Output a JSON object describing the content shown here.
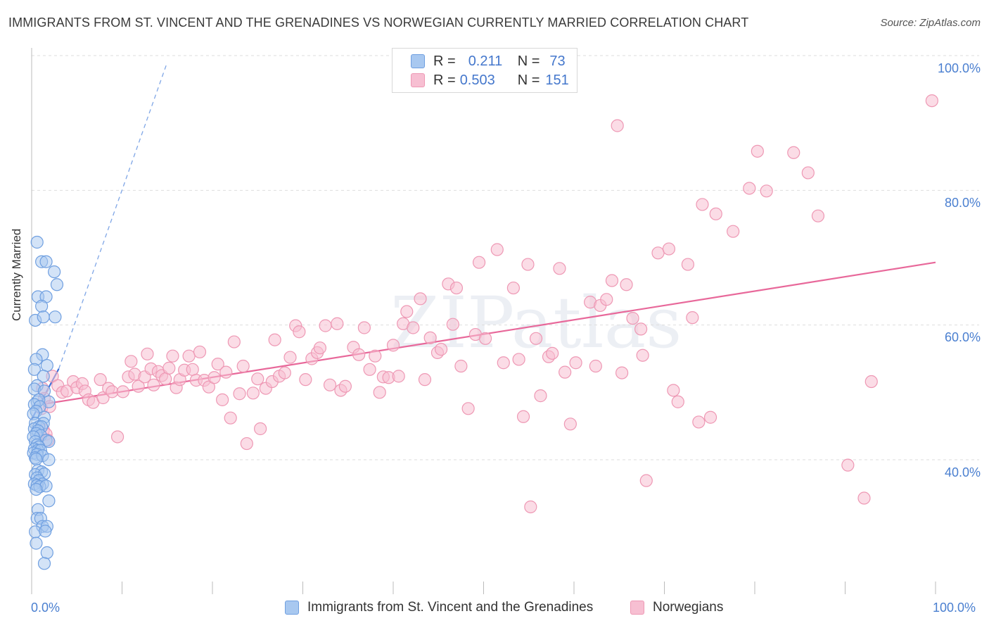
{
  "header": {
    "title": "IMMIGRANTS FROM ST. VINCENT AND THE GRENADINES VS NORWEGIAN CURRENTLY MARRIED CORRELATION CHART",
    "source": "Source: ZipAtlas.com"
  },
  "watermark": "ZIPatlas",
  "legend_top": {
    "rows": [
      {
        "r_label": "R =",
        "r_value": "0.211",
        "n_label": "N =",
        "n_value": "73"
      },
      {
        "r_label": "R =",
        "r_value": "0.503",
        "n_label": "N =",
        "n_value": "151"
      }
    ]
  },
  "colors": {
    "blue_fill": "#a8c8f0",
    "blue_stroke": "#6f9fe0",
    "blue_line": "#3f6fd8",
    "pink_fill": "#f7bfd2",
    "pink_stroke": "#ee98b4",
    "pink_line": "#e8689a",
    "grid": "#dddddd",
    "tick_text": "#4a7fd0"
  },
  "chart_data": {
    "type": "scatter",
    "title": "IMMIGRANTS FROM ST. VINCENT AND THE GRENADINES VS NORWEGIAN CURRENTLY MARRIED CORRELATION CHART",
    "xlabel": "",
    "ylabel": "Currently Married",
    "xlim": [
      0,
      100
    ],
    "ylim": [
      20,
      102
    ],
    "x_ticks": [
      "0.0%",
      "100.0%"
    ],
    "y_ticks": [
      "40.0%",
      "60.0%",
      "80.0%",
      "100.0%"
    ],
    "y_tick_values": [
      40,
      60,
      80,
      100
    ],
    "grid": true,
    "legend": "bottom",
    "series": [
      {
        "name": "Immigrants from St. Vincent and the Grenadines",
        "color": "blue",
        "R": 0.211,
        "N": 73,
        "trend_solid": [
          [
            0.0,
            46.0
          ],
          [
            3.0,
            53.5
          ]
        ],
        "trend_dashed": [
          [
            3.0,
            53.5
          ],
          [
            15.0,
            99.0
          ]
        ],
        "points": [
          [
            0.6,
            72.3
          ],
          [
            1.1,
            69.4
          ],
          [
            1.6,
            69.4
          ],
          [
            2.5,
            67.9
          ],
          [
            2.8,
            66.0
          ],
          [
            0.7,
            64.2
          ],
          [
            1.6,
            64.2
          ],
          [
            1.1,
            62.8
          ],
          [
            0.4,
            60.7
          ],
          [
            1.3,
            61.2
          ],
          [
            2.6,
            61.2
          ],
          [
            1.2,
            55.6
          ],
          [
            0.5,
            54.9
          ],
          [
            1.7,
            54.0
          ],
          [
            0.3,
            53.4
          ],
          [
            1.3,
            52.4
          ],
          [
            0.6,
            51.0
          ],
          [
            0.3,
            50.5
          ],
          [
            1.4,
            50.2
          ],
          [
            1.9,
            48.6
          ],
          [
            0.6,
            48.6
          ],
          [
            0.8,
            48.9
          ],
          [
            0.3,
            48.2
          ],
          [
            0.9,
            47.9
          ],
          [
            0.5,
            47.2
          ],
          [
            0.2,
            46.8
          ],
          [
            1.4,
            46.3
          ],
          [
            0.4,
            45.4
          ],
          [
            1.3,
            45.4
          ],
          [
            0.8,
            44.9
          ],
          [
            0.3,
            44.6
          ],
          [
            1.1,
            44.9
          ],
          [
            0.7,
            44.3
          ],
          [
            0.5,
            43.9
          ],
          [
            1.0,
            43.6
          ],
          [
            0.2,
            43.4
          ],
          [
            1.6,
            42.9
          ],
          [
            0.4,
            42.7
          ],
          [
            1.9,
            42.7
          ],
          [
            0.6,
            42.2
          ],
          [
            0.8,
            41.9
          ],
          [
            0.3,
            41.6
          ],
          [
            0.7,
            41.4
          ],
          [
            1.0,
            41.4
          ],
          [
            0.2,
            41.0
          ],
          [
            0.6,
            40.8
          ],
          [
            0.4,
            40.3
          ],
          [
            1.2,
            40.6
          ],
          [
            0.5,
            40.1
          ],
          [
            1.9,
            40.0
          ],
          [
            0.7,
            38.4
          ],
          [
            1.1,
            38.2
          ],
          [
            0.4,
            37.8
          ],
          [
            1.4,
            37.9
          ],
          [
            0.6,
            37.3
          ],
          [
            0.8,
            36.9
          ],
          [
            1.2,
            36.4
          ],
          [
            0.3,
            36.4
          ],
          [
            0.6,
            36.2
          ],
          [
            0.9,
            36.0
          ],
          [
            1.6,
            36.1
          ],
          [
            0.5,
            35.6
          ],
          [
            1.9,
            33.9
          ],
          [
            0.7,
            32.6
          ],
          [
            0.6,
            31.3
          ],
          [
            1.0,
            31.3
          ],
          [
            1.2,
            30.1
          ],
          [
            1.7,
            30.1
          ],
          [
            0.4,
            29.3
          ],
          [
            1.5,
            29.4
          ],
          [
            0.5,
            27.6
          ],
          [
            1.7,
            26.2
          ],
          [
            1.4,
            24.6
          ]
        ]
      },
      {
        "name": "Norwegians",
        "color": "pink",
        "R": 0.503,
        "N": 151,
        "trend_solid": [
          [
            1.5,
            48.3
          ],
          [
            100.0,
            69.3
          ]
        ],
        "points": [
          [
            1.2,
            50.6
          ],
          [
            1.4,
            49.1
          ],
          [
            1.1,
            47.6
          ],
          [
            1.3,
            44.4
          ],
          [
            1.6,
            43.8
          ],
          [
            1.8,
            42.9
          ],
          [
            2.0,
            47.9
          ],
          [
            2.3,
            52.4
          ],
          [
            2.9,
            51.0
          ],
          [
            3.4,
            50.0
          ],
          [
            3.9,
            50.2
          ],
          [
            4.6,
            51.6
          ],
          [
            5.0,
            50.7
          ],
          [
            5.6,
            51.3
          ],
          [
            5.9,
            50.2
          ],
          [
            6.3,
            48.9
          ],
          [
            6.8,
            48.5
          ],
          [
            7.6,
            51.9
          ],
          [
            7.9,
            49.2
          ],
          [
            8.5,
            50.6
          ],
          [
            8.9,
            50.1
          ],
          [
            9.5,
            43.4
          ],
          [
            10.1,
            50.1
          ],
          [
            10.7,
            52.3
          ],
          [
            11.0,
            54.6
          ],
          [
            11.4,
            52.7
          ],
          [
            11.8,
            50.9
          ],
          [
            12.5,
            52.3
          ],
          [
            12.8,
            55.7
          ],
          [
            13.2,
            53.5
          ],
          [
            13.5,
            51.1
          ],
          [
            14.0,
            53.1
          ],
          [
            14.4,
            52.5
          ],
          [
            14.8,
            52.0
          ],
          [
            15.2,
            53.6
          ],
          [
            15.6,
            55.4
          ],
          [
            16.0,
            50.7
          ],
          [
            16.4,
            51.9
          ],
          [
            16.9,
            53.3
          ],
          [
            17.4,
            55.4
          ],
          [
            17.8,
            53.4
          ],
          [
            18.2,
            51.8
          ],
          [
            18.6,
            56.0
          ],
          [
            19.1,
            51.8
          ],
          [
            19.6,
            50.8
          ],
          [
            20.2,
            52.2
          ],
          [
            20.6,
            54.2
          ],
          [
            21.1,
            48.9
          ],
          [
            21.5,
            53.0
          ],
          [
            22.0,
            46.2
          ],
          [
            22.4,
            57.5
          ],
          [
            23.0,
            49.8
          ],
          [
            23.4,
            53.9
          ],
          [
            23.8,
            42.4
          ],
          [
            24.5,
            49.9
          ],
          [
            25.0,
            52.0
          ],
          [
            25.3,
            44.6
          ],
          [
            25.9,
            50.6
          ],
          [
            26.6,
            51.6
          ],
          [
            26.9,
            57.8
          ],
          [
            27.4,
            52.4
          ],
          [
            28.0,
            52.9
          ],
          [
            28.6,
            55.2
          ],
          [
            29.2,
            59.9
          ],
          [
            29.6,
            59.0
          ],
          [
            30.3,
            51.9
          ],
          [
            31.0,
            55.0
          ],
          [
            31.6,
            55.9
          ],
          [
            31.9,
            56.6
          ],
          [
            32.5,
            59.9
          ],
          [
            33.0,
            51.1
          ],
          [
            33.8,
            60.2
          ],
          [
            34.2,
            50.3
          ],
          [
            34.7,
            50.9
          ],
          [
            35.6,
            56.7
          ],
          [
            36.2,
            55.6
          ],
          [
            36.8,
            59.6
          ],
          [
            37.4,
            53.4
          ],
          [
            38.0,
            55.4
          ],
          [
            38.5,
            50.0
          ],
          [
            38.9,
            52.3
          ],
          [
            39.5,
            52.2
          ],
          [
            40.0,
            57.0
          ],
          [
            40.6,
            52.4
          ],
          [
            41.1,
            60.2
          ],
          [
            41.5,
            62.0
          ],
          [
            42.2,
            59.6
          ],
          [
            43.0,
            63.9
          ],
          [
            43.5,
            51.9
          ],
          [
            44.1,
            58.1
          ],
          [
            44.9,
            55.9
          ],
          [
            45.3,
            56.4
          ],
          [
            46.6,
            60.1
          ],
          [
            46.1,
            66.1
          ],
          [
            47.0,
            65.5
          ],
          [
            47.5,
            53.9
          ],
          [
            48.3,
            47.6
          ],
          [
            49.1,
            58.6
          ],
          [
            49.5,
            69.3
          ],
          [
            50.2,
            58.0
          ],
          [
            51.5,
            71.2
          ],
          [
            52.2,
            54.4
          ],
          [
            53.3,
            65.5
          ],
          [
            53.9,
            54.9
          ],
          [
            54.4,
            46.4
          ],
          [
            54.9,
            69.0
          ],
          [
            55.2,
            33.0
          ],
          [
            55.8,
            58.0
          ],
          [
            56.3,
            49.5
          ],
          [
            57.2,
            55.3
          ],
          [
            57.6,
            55.8
          ],
          [
            58.4,
            68.4
          ],
          [
            59.0,
            53.0
          ],
          [
            59.6,
            45.3
          ],
          [
            60.2,
            54.4
          ],
          [
            61.8,
            63.4
          ],
          [
            62.4,
            53.9
          ],
          [
            62.9,
            62.9
          ],
          [
            63.6,
            63.8
          ],
          [
            64.2,
            66.6
          ],
          [
            64.8,
            89.6
          ],
          [
            65.3,
            52.9
          ],
          [
            65.8,
            66.0
          ],
          [
            66.5,
            61.0
          ],
          [
            67.4,
            59.4
          ],
          [
            67.6,
            55.5
          ],
          [
            68.0,
            36.9
          ],
          [
            69.3,
            70.7
          ],
          [
            70.5,
            71.3
          ],
          [
            71.0,
            50.3
          ],
          [
            71.5,
            48.6
          ],
          [
            72.6,
            69.0
          ],
          [
            73.1,
            61.1
          ],
          [
            73.8,
            45.6
          ],
          [
            74.2,
            77.9
          ],
          [
            75.1,
            46.3
          ],
          [
            75.7,
            76.5
          ],
          [
            77.6,
            73.9
          ],
          [
            79.4,
            80.3
          ],
          [
            80.3,
            85.8
          ],
          [
            81.3,
            79.9
          ],
          [
            84.3,
            85.6
          ],
          [
            85.9,
            82.6
          ],
          [
            87.0,
            76.2
          ],
          [
            90.3,
            39.2
          ],
          [
            92.1,
            34.3
          ],
          [
            92.9,
            51.6
          ],
          [
            99.6,
            93.3
          ]
        ]
      }
    ]
  },
  "legend_bottom": {
    "items": [
      {
        "label": "Immigrants from St. Vincent and the Grenadines"
      },
      {
        "label": "Norwegians"
      }
    ]
  }
}
